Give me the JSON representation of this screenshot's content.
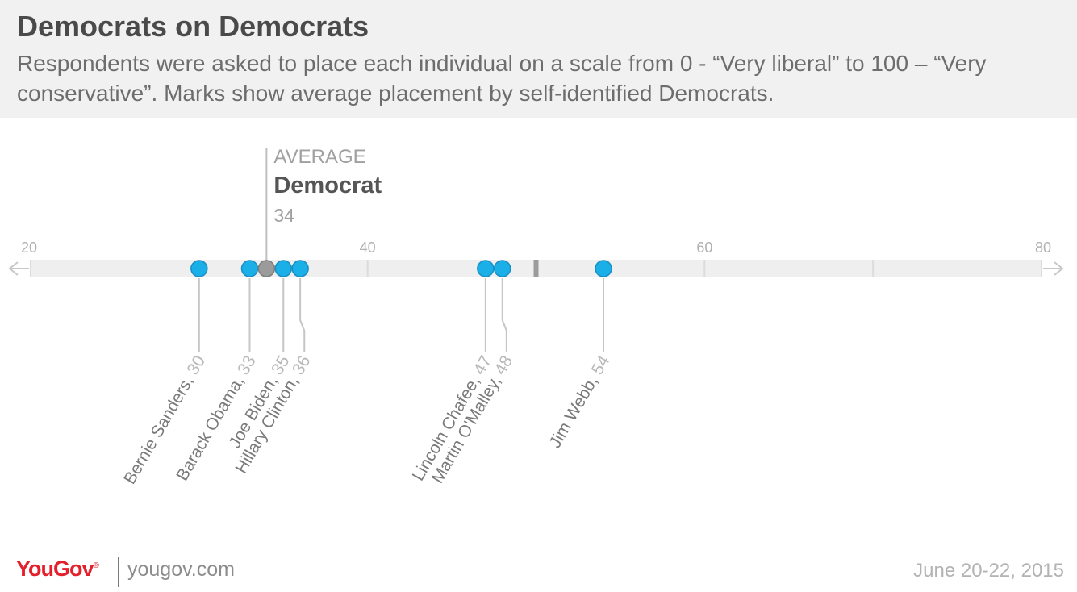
{
  "header": {
    "title": "Democrats on Democrats",
    "subtitle": "Respondents were asked to place each individual on a scale from 0 - “Very liberal” to 100 – “Very conservative”.  Marks show average placement by self-identified Democrats."
  },
  "footer": {
    "logo": "YouGov",
    "logo_mark": "®",
    "site": "yougov.com",
    "date": "June 20-22, 2015"
  },
  "colors": {
    "point": "#1aafe6",
    "point_stroke": "#1a8fc4",
    "average_point": "#9b9b9b",
    "track": "#efefef",
    "header_bg": "#f1f1f2",
    "brand": "#e4202c"
  },
  "chart_data": {
    "type": "scatter",
    "xlim": [
      20,
      80
    ],
    "ticks": [
      20,
      40,
      60,
      80
    ],
    "tick_labels": [
      "20",
      "40",
      "60",
      "80"
    ],
    "points": [
      {
        "name": "Bernie Sanders",
        "value": 30,
        "label": "Bernie Sanders, 30"
      },
      {
        "name": "Barack Obama",
        "value": 33,
        "label": "Barack Obama, 33"
      },
      {
        "name": "Joe Biden",
        "value": 35,
        "label": "Joe Biden, 35"
      },
      {
        "name": "Hillary Clinton",
        "value": 36,
        "label": "Hillary Clinton, 36"
      },
      {
        "name": "Lincoln Chafee",
        "value": 47,
        "label": "Lincoln Chafee, 47"
      },
      {
        "name": "Martin O'Malley",
        "value": 48,
        "label": "Martin O'Malley, 48"
      },
      {
        "name": "Jim Webb",
        "value": 54,
        "label": "Jim Webb, 54"
      }
    ],
    "average": {
      "caption": "AVERAGE",
      "group": "Democrat",
      "value": 34,
      "value_label": "34"
    },
    "midpoint_marker": 50
  }
}
